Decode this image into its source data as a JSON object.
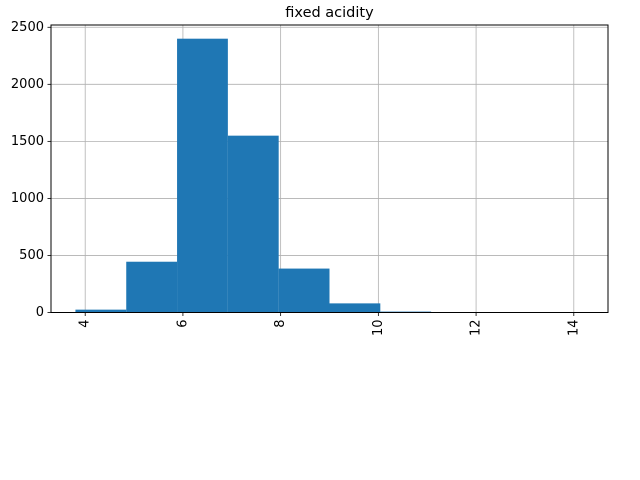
{
  "chart_data": {
    "type": "histogram",
    "title": "fixed acidity",
    "xlabel": "",
    "ylabel": "",
    "grid": true,
    "bar_color": "#1f77b4",
    "xlim": [
      3.3,
      14.7
    ],
    "ylim": [
      0,
      2520
    ],
    "xticks": [
      4,
      6,
      8,
      10,
      12,
      14
    ],
    "yticks": [
      0,
      500,
      1000,
      1500,
      2000,
      2500
    ],
    "xtick_rotation": 90,
    "bins": [
      {
        "x0": 3.8,
        "x1": 4.84,
        "count": 25
      },
      {
        "x0": 4.84,
        "x1": 5.88,
        "count": 445
      },
      {
        "x0": 5.88,
        "x1": 6.92,
        "count": 2400
      },
      {
        "x0": 6.92,
        "x1": 7.96,
        "count": 1550
      },
      {
        "x0": 7.96,
        "x1": 9.0,
        "count": 385
      },
      {
        "x0": 9.0,
        "x1": 10.04,
        "count": 80
      },
      {
        "x0": 10.04,
        "x1": 11.08,
        "count": 8
      },
      {
        "x0": 11.08,
        "x1": 12.12,
        "count": 2
      },
      {
        "x0": 12.12,
        "x1": 13.16,
        "count": 0
      },
      {
        "x0": 13.16,
        "x1": 14.2,
        "count": 1
      }
    ]
  }
}
